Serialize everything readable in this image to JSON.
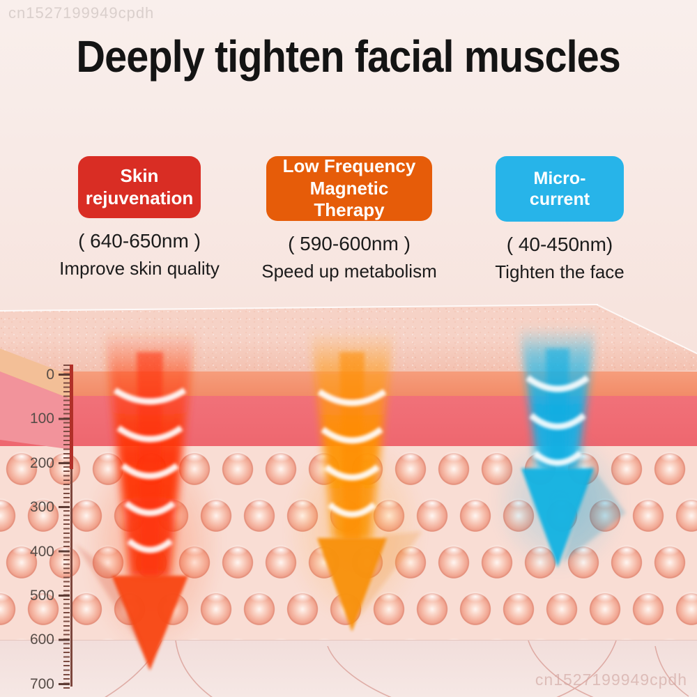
{
  "watermark_top": "cn1527199949cpdh",
  "watermark_bottom": "cn1527199949cpdh",
  "title": "Deeply tighten facial muscles",
  "treatments": [
    {
      "label": "Skin rejuvenation",
      "wavelength": "( 640-650nm )",
      "benefit": "Improve skin quality",
      "badge_color": "#d92d24"
    },
    {
      "label": "Low Frequency Magnetic Therapy",
      "wavelength": "( 590-600nm )",
      "benefit": "Speed up metabolism",
      "badge_color": "#e65c09"
    },
    {
      "label": "Micro- current",
      "wavelength": "( 40-450nm)",
      "benefit": "Tighten the face",
      "badge_color": "#27b4e9"
    }
  ],
  "diagram": {
    "description_names": [
      "red-light-beam",
      "orange-light-beam",
      "blue-current-beam"
    ],
    "beam_colors": {
      "red": "#ff3c0a",
      "orange": "#ff9a00",
      "blue": "#18b4e8"
    },
    "skin_layer_colors": {
      "surface": "#f5cdc0",
      "epidermis": "#f28c68",
      "dermis": "#ee676f",
      "fat_cells": "#f5b6a3"
    },
    "ruler": {
      "unit_labels": [
        "0",
        "100",
        "200",
        "300",
        "400",
        "500",
        "600",
        "700"
      ]
    }
  }
}
